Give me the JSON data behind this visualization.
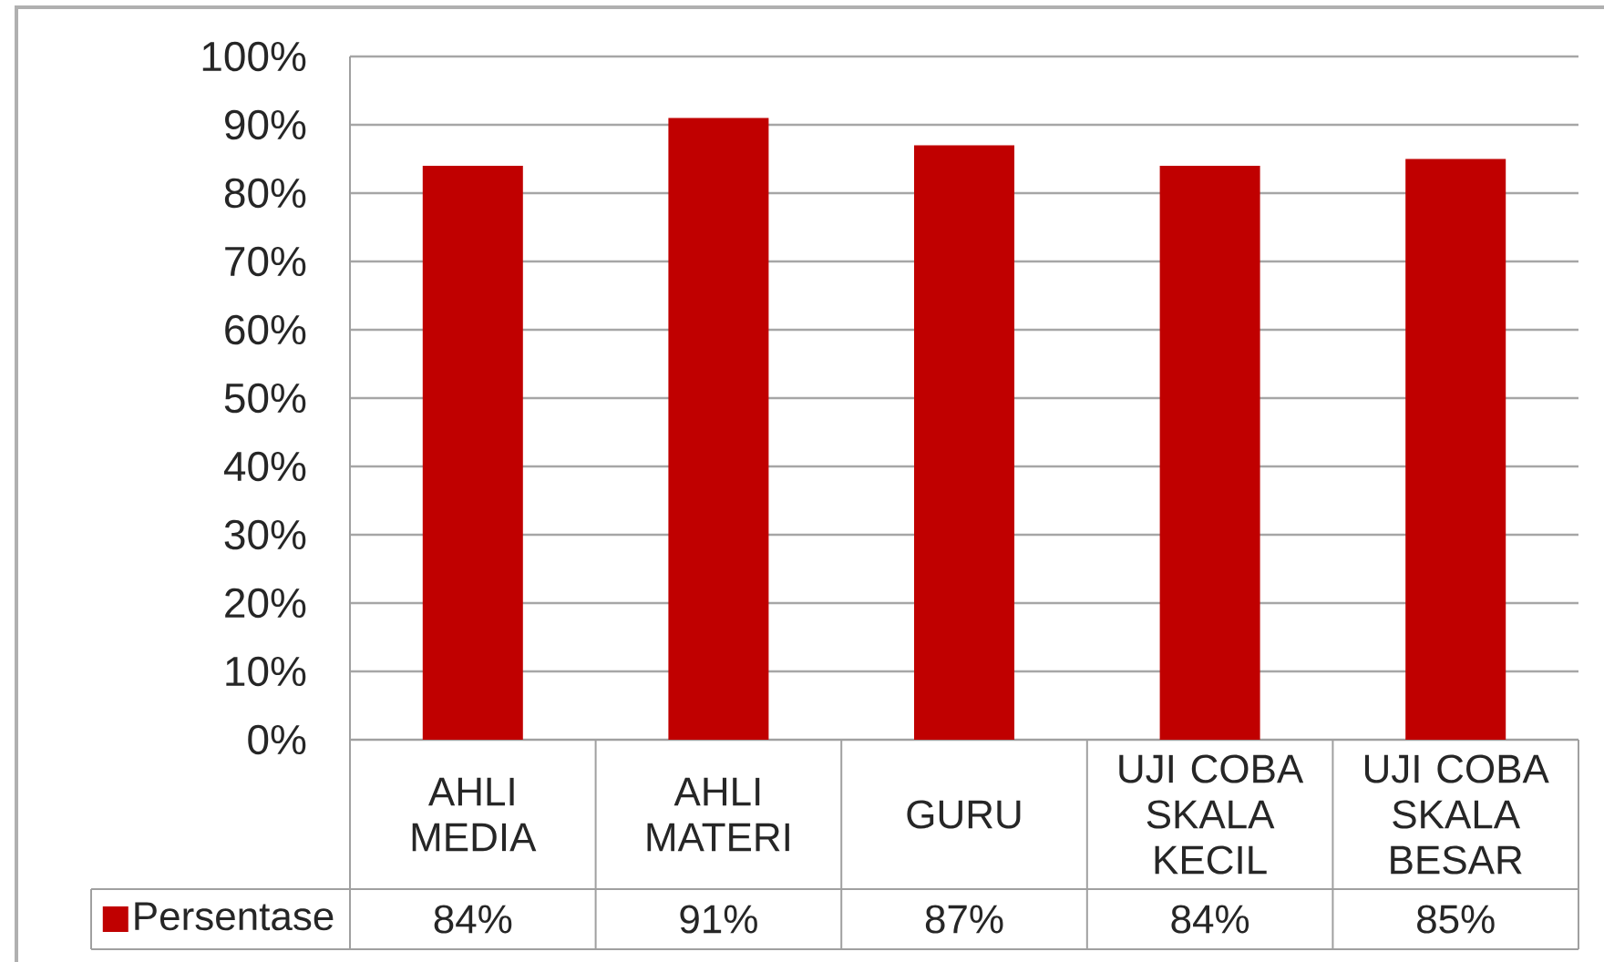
{
  "chart_data": {
    "type": "bar",
    "categories": [
      "AHLI MEDIA",
      "AHLI MATERI",
      "GURU",
      "UJI COBA SKALA KECIL",
      "UJI COBA SKALA BESAR"
    ],
    "series": [
      {
        "name": "Persentase",
        "color": "#c00000",
        "values": [
          84,
          91,
          87,
          84,
          85
        ],
        "value_labels": [
          "84%",
          "91%",
          "87%",
          "84%",
          "85%"
        ]
      }
    ],
    "ylim": [
      0,
      100
    ],
    "yticks": [
      {
        "value": 0,
        "label": "0%"
      },
      {
        "value": 10,
        "label": "10%"
      },
      {
        "value": 20,
        "label": "20%"
      },
      {
        "value": 30,
        "label": "30%"
      },
      {
        "value": 40,
        "label": "40%"
      },
      {
        "value": 50,
        "label": "50%"
      },
      {
        "value": 60,
        "label": "60%"
      },
      {
        "value": 70,
        "label": "70%"
      },
      {
        "value": 80,
        "label": "80%"
      },
      {
        "value": 90,
        "label": "90%"
      },
      {
        "value": 100,
        "label": "100%"
      }
    ],
    "grid": "y",
    "legend": "bottom left"
  }
}
